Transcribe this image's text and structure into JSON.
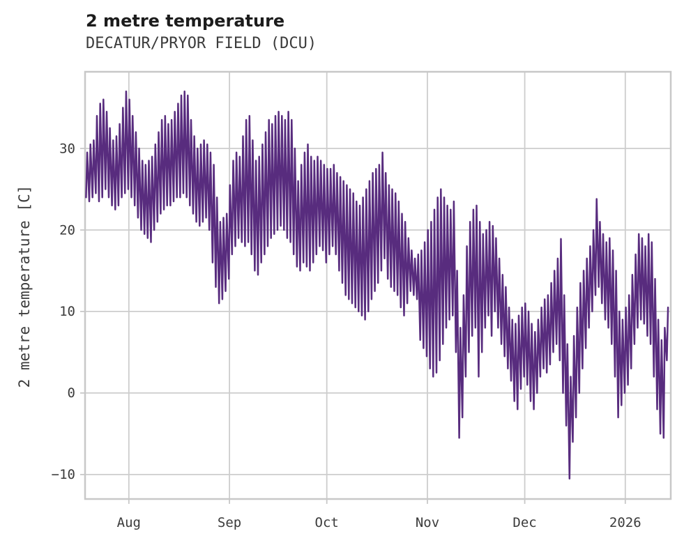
{
  "header": {
    "title": "2 metre temperature",
    "subtitle": "DECATUR/PRYOR FIELD (DCU)"
  },
  "chart_data": {
    "type": "line",
    "title": "2 metre temperature",
    "subtitle": "DECATUR/PRYOR FIELD (DCU)",
    "ylabel": "2 metre temperature [C]",
    "xlabel": "",
    "legend": "none",
    "grid": true,
    "background": "#ffffff",
    "grid_color": "#cdcdcd",
    "text_color": "#3b3b3b",
    "line_color": "#582c7e",
    "line_width": 2.5,
    "ylim": [
      -13,
      39.4
    ],
    "yticks": [
      30,
      20,
      10,
      0,
      -10
    ],
    "x_axis": {
      "start_date": "2025-07-18",
      "unit": "days",
      "domain": [
        0,
        180.5
      ],
      "ticks": [
        {
          "label": "Aug",
          "day": 13.5
        },
        {
          "label": "Sep",
          "day": 44.5
        },
        {
          "label": "Oct",
          "day": 74.5
        },
        {
          "label": "Nov",
          "day": 105.5
        },
        {
          "label": "Dec",
          "day": 135.5
        },
        {
          "label": "2026",
          "day": 166.5
        }
      ]
    },
    "series": [
      {
        "name": "2 metre temperature",
        "encoding": "daily diurnal envelope: lo = morning minimum (C), hi = afternoon maximum (C), one pair per day from start_date",
        "lo": [
          24,
          23.5,
          24,
          24.5,
          23.5,
          24,
          25,
          24,
          23,
          22.5,
          23,
          24,
          24.5,
          25,
          24,
          23,
          21.5,
          20,
          19.5,
          19,
          18.5,
          20,
          21,
          22,
          22.5,
          23,
          23,
          23.5,
          24,
          24,
          24.5,
          24,
          23,
          22,
          21,
          20.5,
          21,
          21.5,
          20,
          16,
          13,
          11,
          11.5,
          12.5,
          14,
          17,
          18,
          19,
          18.5,
          18,
          18.5,
          17,
          15,
          14.5,
          16,
          17,
          18,
          19,
          19.5,
          20,
          20.5,
          20,
          19,
          18.5,
          17,
          15.5,
          15,
          16,
          15.5,
          15,
          16,
          17,
          18,
          17.5,
          16,
          17,
          18,
          17,
          15,
          13.5,
          12,
          11.5,
          11,
          10.5,
          10,
          9.5,
          9,
          10,
          11.5,
          12.5,
          13.5,
          15,
          16.5,
          14,
          13,
          12.5,
          12,
          10.5,
          9.5,
          11,
          12.5,
          12,
          11.5,
          6.5,
          5.5,
          4.5,
          3,
          2,
          2.5,
          4,
          6,
          8,
          9,
          9.5,
          5,
          -5.5,
          -3,
          2,
          5,
          7,
          8,
          2,
          5,
          8,
          9.5,
          7,
          10,
          8,
          6,
          4.5,
          3,
          1.5,
          -1,
          -2,
          0.5,
          2,
          1,
          -1,
          -2,
          0,
          2,
          3,
          2.5,
          3.5,
          5,
          6,
          4,
          0,
          -4,
          -10.5,
          -6,
          -3,
          0,
          3,
          5.5,
          8,
          10,
          12,
          13,
          11,
          9,
          8,
          6,
          2,
          -3,
          -1.5,
          0,
          1,
          3,
          6,
          8,
          9,
          8.5,
          7,
          6,
          2,
          -2,
          -5,
          -5.5,
          4
        ],
        "hi": [
          29.5,
          30.5,
          31,
          34,
          35.5,
          36,
          34.5,
          32.5,
          31,
          31.5,
          33,
          35,
          37,
          36,
          34,
          32,
          30,
          28.5,
          28,
          28.5,
          29,
          30.5,
          32,
          33.5,
          34,
          33,
          33.5,
          34.5,
          35.5,
          36.5,
          37,
          36.5,
          33.5,
          31.5,
          30,
          30.5,
          31,
          30.5,
          29.5,
          28,
          24,
          21,
          21.5,
          22,
          25.5,
          28.5,
          29.5,
          29,
          31.5,
          33.5,
          34,
          31,
          28.5,
          29,
          30.5,
          32,
          33.5,
          33,
          34,
          34.5,
          34,
          33.5,
          34.5,
          33.5,
          30,
          26,
          28,
          29.5,
          30.5,
          29,
          28.5,
          29,
          28.5,
          28,
          27.5,
          27.5,
          28,
          27,
          26.5,
          26,
          25.5,
          25,
          24.5,
          23.5,
          23,
          24,
          25,
          26,
          27,
          27.5,
          28,
          29.5,
          27,
          25.5,
          25,
          24.5,
          23.5,
          22,
          21,
          19,
          17.5,
          16.5,
          17,
          17.5,
          18.5,
          20,
          21,
          22.5,
          24,
          25,
          24,
          23,
          22.5,
          23.5,
          15,
          8,
          12,
          18,
          21,
          22.5,
          23,
          21,
          19.5,
          20,
          21,
          20.5,
          19,
          16.5,
          14.5,
          13,
          10.5,
          9,
          8.5,
          9.5,
          10.5,
          11,
          10,
          8.5,
          7.5,
          9,
          10.5,
          11.5,
          12,
          13.5,
          15,
          16.5,
          18.9,
          12,
          6,
          2,
          7,
          10.5,
          13.5,
          15,
          16.5,
          18,
          20,
          23.8,
          21,
          19.5,
          18.5,
          19,
          17.5,
          15,
          10,
          9,
          10.5,
          12,
          14.5,
          17,
          19.5,
          19,
          18,
          19.5,
          18.5,
          14,
          9,
          6.5,
          8,
          10.5
        ]
      }
    ]
  }
}
